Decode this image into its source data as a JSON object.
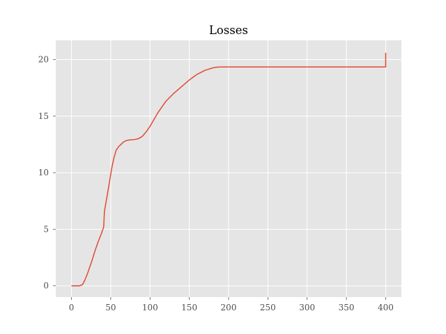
{
  "chart_data": {
    "type": "line",
    "title": "Losses",
    "xlabel": "",
    "ylabel": "",
    "xlim": [
      -20,
      420
    ],
    "ylim": [
      -1,
      21.7
    ],
    "x_ticks": [
      0,
      50,
      100,
      150,
      200,
      250,
      300,
      350,
      400
    ],
    "y_ticks": [
      0,
      5,
      10,
      15,
      20
    ],
    "grid": true,
    "legend": "none",
    "colors": {
      "background": "#e5e5e5",
      "grid": "#ffffff",
      "line": "#e24a33",
      "tick_text": "#4d4d4d"
    },
    "series": [
      {
        "x": [
          0,
          5,
          10,
          14,
          17,
          20,
          23,
          26,
          30,
          34,
          38,
          41,
          42,
          43,
          45,
          48,
          51,
          54,
          57,
          60,
          63,
          66,
          70,
          75,
          80,
          85,
          90,
          95,
          100,
          105,
          110,
          115,
          120,
          130,
          140,
          150,
          160,
          170,
          180,
          185,
          190,
          195,
          200,
          250,
          300,
          350,
          399,
          400,
          400
        ],
        "y": [
          0,
          0,
          0,
          0.1,
          0.5,
          1.0,
          1.6,
          2.2,
          3.1,
          3.9,
          4.6,
          5.2,
          6.6,
          7.0,
          7.8,
          9.0,
          10.3,
          11.3,
          12.0,
          12.3,
          12.5,
          12.7,
          12.85,
          12.9,
          12.93,
          13.0,
          13.2,
          13.6,
          14.1,
          14.7,
          15.3,
          15.8,
          16.3,
          17.0,
          17.6,
          18.2,
          18.7,
          19.05,
          19.27,
          19.33,
          19.35,
          19.35,
          19.35,
          19.35,
          19.35,
          19.35,
          19.35,
          19.35,
          20.6
        ]
      }
    ]
  }
}
